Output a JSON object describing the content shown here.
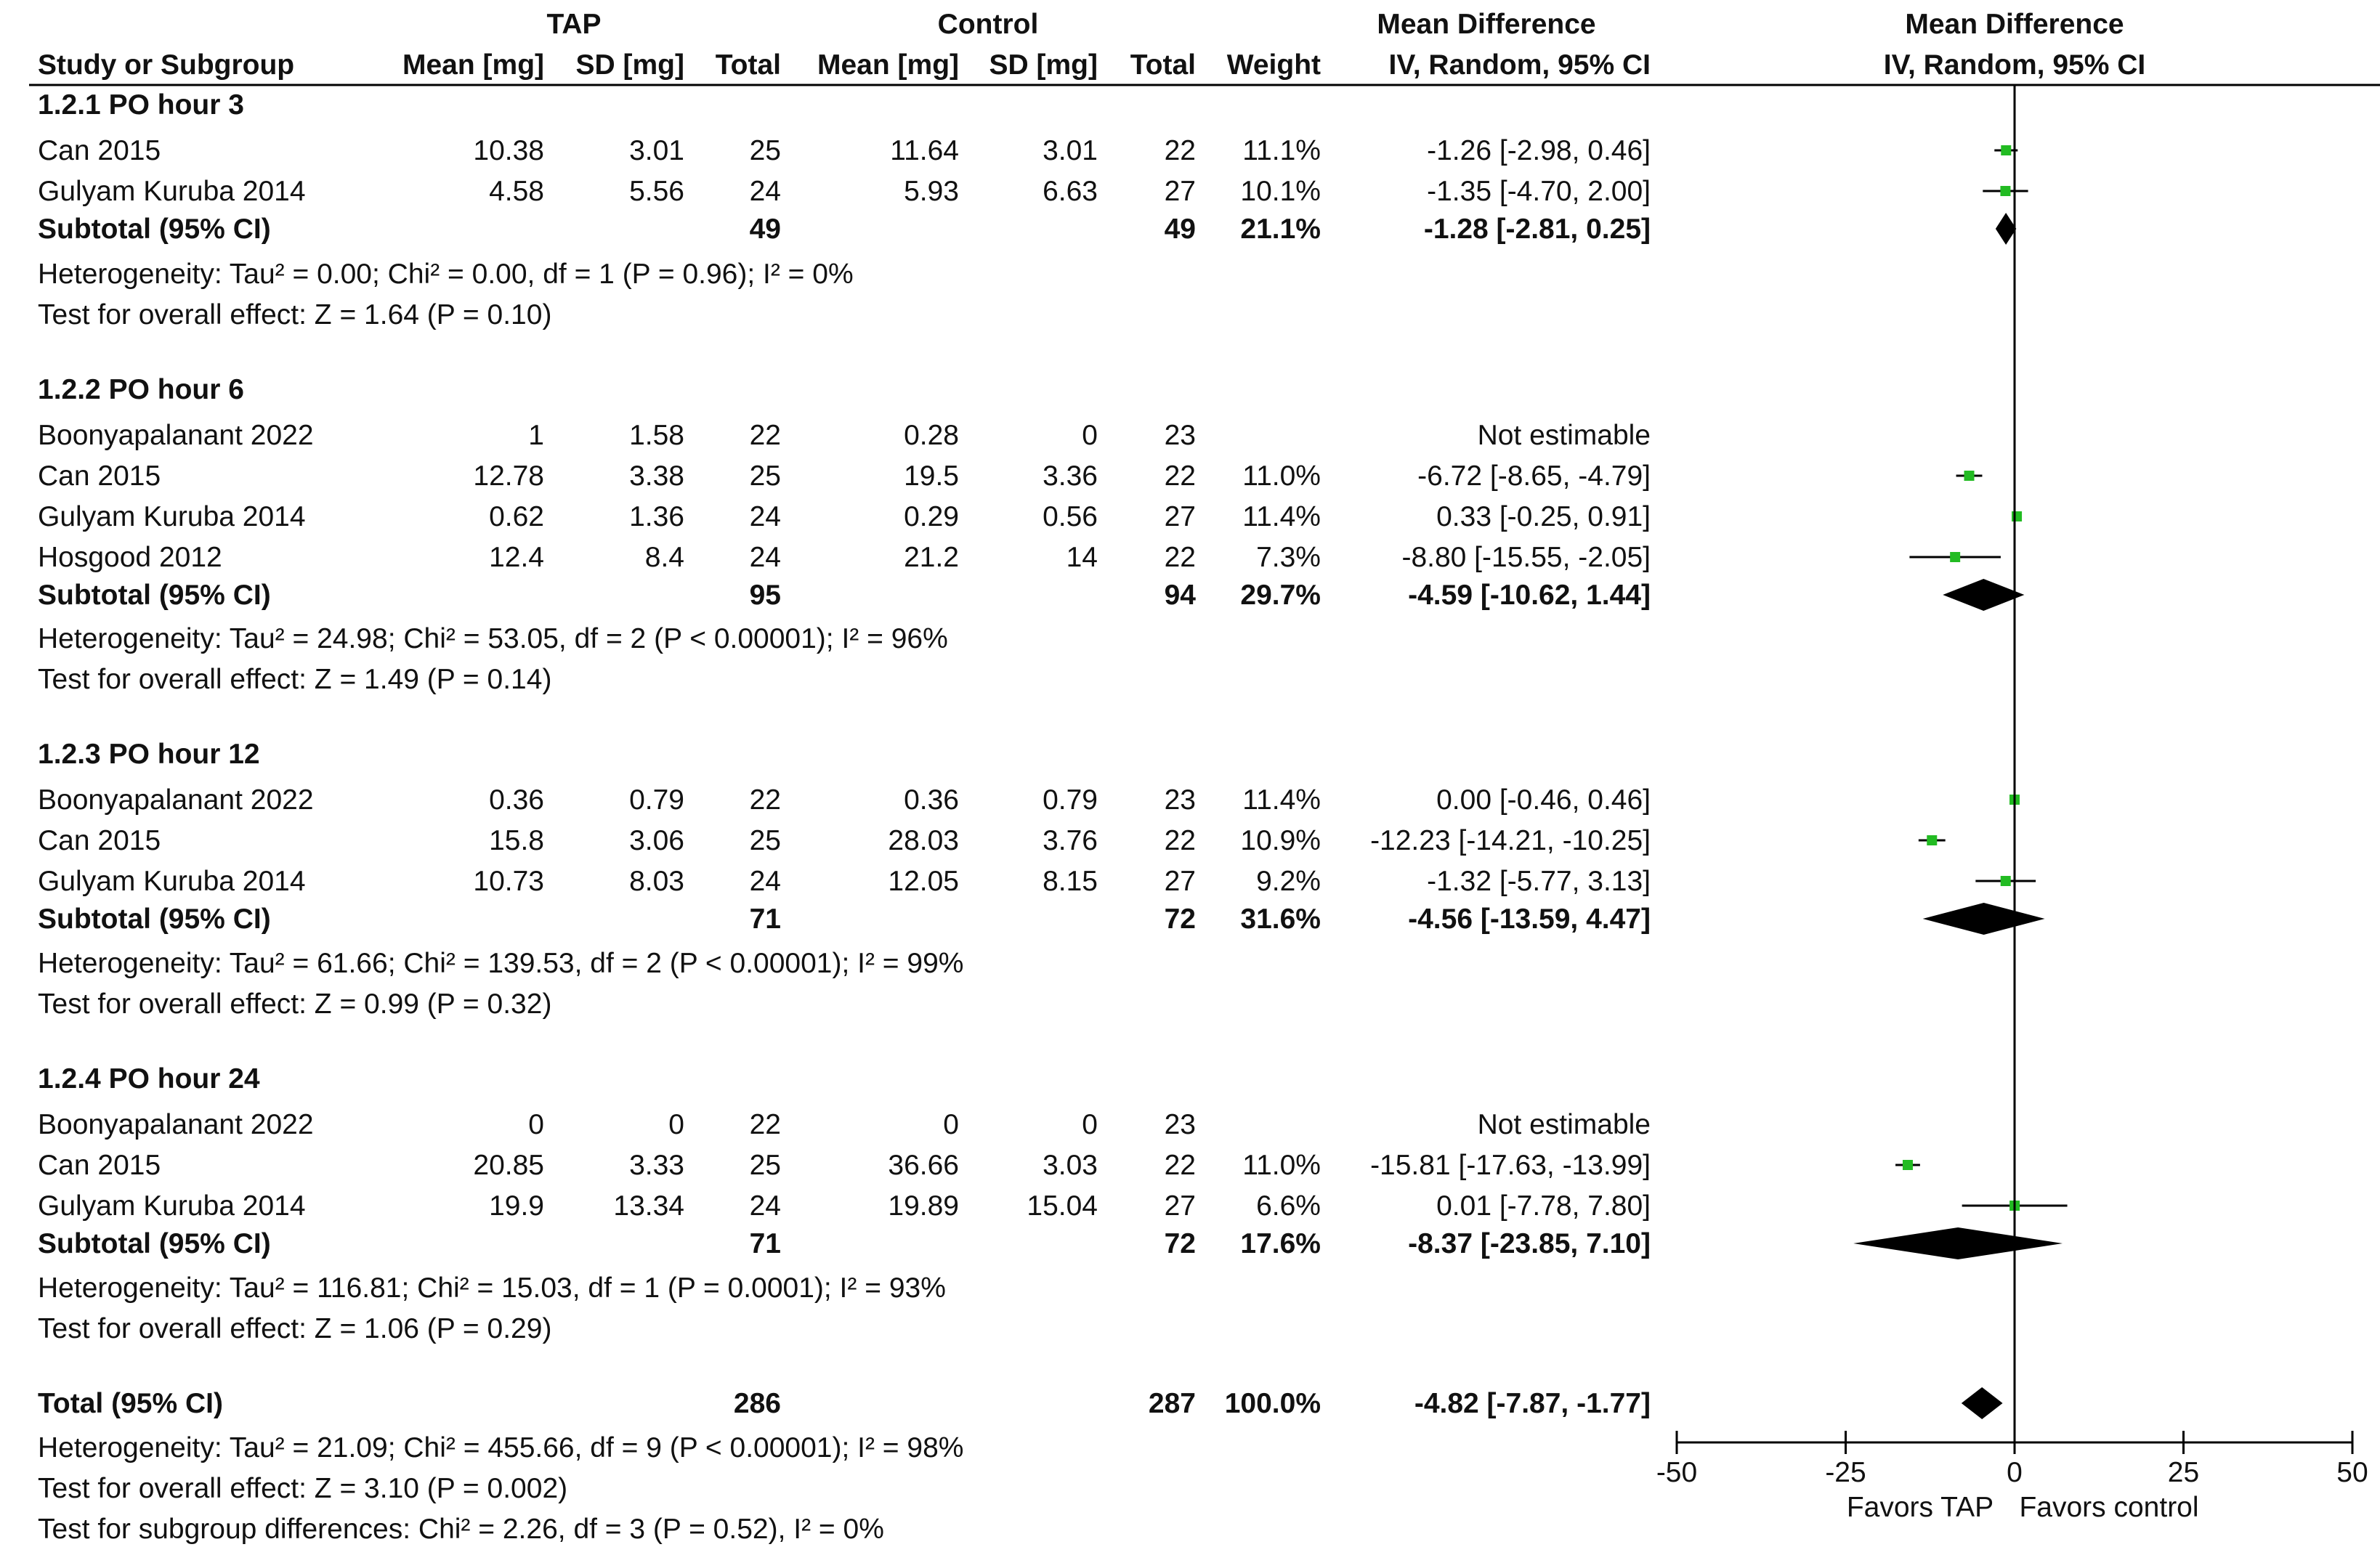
{
  "header": {
    "tap": "TAP",
    "control": "Control",
    "md_left_title": "Mean Difference",
    "md_left_sub": "IV, Random, 95% CI",
    "md_right_title": "Mean Difference",
    "md_right_sub": "IV, Random, 95% CI",
    "columns": {
      "study": "Study or Subgroup",
      "mean_tap": "Mean [mg]",
      "sd_tap": "SD [mg]",
      "total_tap": "Total",
      "mean_ctrl": "Mean [mg]",
      "sd_ctrl": "SD [mg]",
      "total_ctrl": "Total",
      "weight": "Weight"
    }
  },
  "colors": {
    "square": "#22bb22",
    "diamond": "#000000",
    "text": "#111111"
  },
  "chart_data": {
    "type": "forest",
    "xlim": [
      -50,
      50
    ],
    "ticks": [
      -50,
      -25,
      0,
      25,
      50
    ],
    "tick_labels": [
      "-50",
      "-25",
      "0",
      "25",
      "50"
    ],
    "favors_left": "Favors TAP",
    "favors_right": "Favors control",
    "subgroups": [
      {
        "title": "1.2.1 PO hour 3",
        "studies": [
          {
            "name": "Can 2015",
            "mean_tap": "10.38",
            "sd_tap": "3.01",
            "total_tap": "25",
            "mean_ctrl": "11.64",
            "sd_ctrl": "3.01",
            "total_ctrl": "22",
            "weight": "11.1%",
            "ci_text": "-1.26 [-2.98, 0.46]",
            "md": -1.26,
            "lo": -2.98,
            "hi": 0.46
          },
          {
            "name": "Gulyam Kuruba 2014",
            "mean_tap": "4.58",
            "sd_tap": "5.56",
            "total_tap": "24",
            "mean_ctrl": "5.93",
            "sd_ctrl": "6.63",
            "total_ctrl": "27",
            "weight": "10.1%",
            "ci_text": "-1.35 [-4.70, 2.00]",
            "md": -1.35,
            "lo": -4.7,
            "hi": 2.0
          }
        ],
        "subtotal": {
          "label": "Subtotal (95% CI)",
          "total_tap": "49",
          "total_ctrl": "49",
          "weight": "21.1%",
          "ci_text": "-1.28 [-2.81, 0.25]",
          "md": -1.28,
          "lo": -2.81,
          "hi": 0.25
        },
        "heterogeneity": "Heterogeneity: Tau² = 0.00; Chi² = 0.00, df = 1 (P = 0.96); I² = 0%",
        "overall": "Test for overall effect: Z = 1.64 (P = 0.10)"
      },
      {
        "title": "1.2.2 PO hour 6",
        "studies": [
          {
            "name": "Boonyapalanant 2022",
            "mean_tap": "1",
            "sd_tap": "1.58",
            "total_tap": "22",
            "mean_ctrl": "0.28",
            "sd_ctrl": "0",
            "total_ctrl": "23",
            "weight": "",
            "ci_text": "Not estimable",
            "md": null,
            "lo": null,
            "hi": null
          },
          {
            "name": "Can 2015",
            "mean_tap": "12.78",
            "sd_tap": "3.38",
            "total_tap": "25",
            "mean_ctrl": "19.5",
            "sd_ctrl": "3.36",
            "total_ctrl": "22",
            "weight": "11.0%",
            "ci_text": "-6.72 [-8.65, -4.79]",
            "md": -6.72,
            "lo": -8.65,
            "hi": -4.79
          },
          {
            "name": "Gulyam Kuruba 2014",
            "mean_tap": "0.62",
            "sd_tap": "1.36",
            "total_tap": "24",
            "mean_ctrl": "0.29",
            "sd_ctrl": "0.56",
            "total_ctrl": "27",
            "weight": "11.4%",
            "ci_text": "0.33 [-0.25, 0.91]",
            "md": 0.33,
            "lo": -0.25,
            "hi": 0.91
          },
          {
            "name": "Hosgood 2012",
            "mean_tap": "12.4",
            "sd_tap": "8.4",
            "total_tap": "24",
            "mean_ctrl": "21.2",
            "sd_ctrl": "14",
            "total_ctrl": "22",
            "weight": "7.3%",
            "ci_text": "-8.80 [-15.55, -2.05]",
            "md": -8.8,
            "lo": -15.55,
            "hi": -2.05
          }
        ],
        "subtotal": {
          "label": "Subtotal (95% CI)",
          "total_tap": "95",
          "total_ctrl": "94",
          "weight": "29.7%",
          "ci_text": "-4.59 [-10.62, 1.44]",
          "md": -4.59,
          "lo": -10.62,
          "hi": 1.44
        },
        "heterogeneity": "Heterogeneity: Tau² = 24.98; Chi² = 53.05, df = 2 (P < 0.00001); I² = 96%",
        "overall": "Test for overall effect: Z = 1.49 (P = 0.14)"
      },
      {
        "title": "1.2.3 PO hour 12",
        "studies": [
          {
            "name": "Boonyapalanant 2022",
            "mean_tap": "0.36",
            "sd_tap": "0.79",
            "total_tap": "22",
            "mean_ctrl": "0.36",
            "sd_ctrl": "0.79",
            "total_ctrl": "23",
            "weight": "11.4%",
            "ci_text": "0.00 [-0.46, 0.46]",
            "md": 0.0,
            "lo": -0.46,
            "hi": 0.46
          },
          {
            "name": "Can 2015",
            "mean_tap": "15.8",
            "sd_tap": "3.06",
            "total_tap": "25",
            "mean_ctrl": "28.03",
            "sd_ctrl": "3.76",
            "total_ctrl": "22",
            "weight": "10.9%",
            "ci_text": "-12.23 [-14.21, -10.25]",
            "md": -12.23,
            "lo": -14.21,
            "hi": -10.25
          },
          {
            "name": "Gulyam Kuruba 2014",
            "mean_tap": "10.73",
            "sd_tap": "8.03",
            "total_tap": "24",
            "mean_ctrl": "12.05",
            "sd_ctrl": "8.15",
            "total_ctrl": "27",
            "weight": "9.2%",
            "ci_text": "-1.32 [-5.77, 3.13]",
            "md": -1.32,
            "lo": -5.77,
            "hi": 3.13
          }
        ],
        "subtotal": {
          "label": "Subtotal (95% CI)",
          "total_tap": "71",
          "total_ctrl": "72",
          "weight": "31.6%",
          "ci_text": "-4.56 [-13.59, 4.47]",
          "md": -4.56,
          "lo": -13.59,
          "hi": 4.47
        },
        "heterogeneity": "Heterogeneity: Tau² = 61.66; Chi² = 139.53, df = 2 (P < 0.00001); I² = 99%",
        "overall": "Test for overall effect: Z = 0.99 (P = 0.32)"
      },
      {
        "title": "1.2.4 PO hour 24",
        "studies": [
          {
            "name": "Boonyapalanant 2022",
            "mean_tap": "0",
            "sd_tap": "0",
            "total_tap": "22",
            "mean_ctrl": "0",
            "sd_ctrl": "0",
            "total_ctrl": "23",
            "weight": "",
            "ci_text": "Not estimable",
            "md": null,
            "lo": null,
            "hi": null
          },
          {
            "name": "Can 2015",
            "mean_tap": "20.85",
            "sd_tap": "3.33",
            "total_tap": "25",
            "mean_ctrl": "36.66",
            "sd_ctrl": "3.03",
            "total_ctrl": "22",
            "weight": "11.0%",
            "ci_text": "-15.81 [-17.63, -13.99]",
            "md": -15.81,
            "lo": -17.63,
            "hi": -13.99
          },
          {
            "name": "Gulyam Kuruba 2014",
            "mean_tap": "19.9",
            "sd_tap": "13.34",
            "total_tap": "24",
            "mean_ctrl": "19.89",
            "sd_ctrl": "15.04",
            "total_ctrl": "27",
            "weight": "6.6%",
            "ci_text": "0.01 [-7.78, 7.80]",
            "md": 0.01,
            "lo": -7.78,
            "hi": 7.8
          }
        ],
        "subtotal": {
          "label": "Subtotal (95% CI)",
          "total_tap": "71",
          "total_ctrl": "72",
          "weight": "17.6%",
          "ci_text": "-8.37 [-23.85, 7.10]",
          "md": -8.37,
          "lo": -23.85,
          "hi": 7.1
        },
        "heterogeneity": "Heterogeneity: Tau² = 116.81; Chi² = 15.03, df = 1 (P = 0.0001); I² = 93%",
        "overall": "Test for overall effect: Z = 1.06 (P = 0.29)"
      }
    ],
    "total": {
      "label": "Total (95% CI)",
      "total_tap": "286",
      "total_ctrl": "287",
      "weight": "100.0%",
      "ci_text": "-4.82 [-7.87, -1.77]",
      "md": -4.82,
      "lo": -7.87,
      "hi": -1.77
    },
    "footer": [
      "Heterogeneity: Tau² = 21.09; Chi² = 455.66, df = 9 (P < 0.00001); I² = 98%",
      "Test for overall effect: Z = 3.10 (P = 0.002)",
      "Test for subgroup differences: Chi² = 2.26, df = 3 (P = 0.52), I² = 0%"
    ]
  }
}
